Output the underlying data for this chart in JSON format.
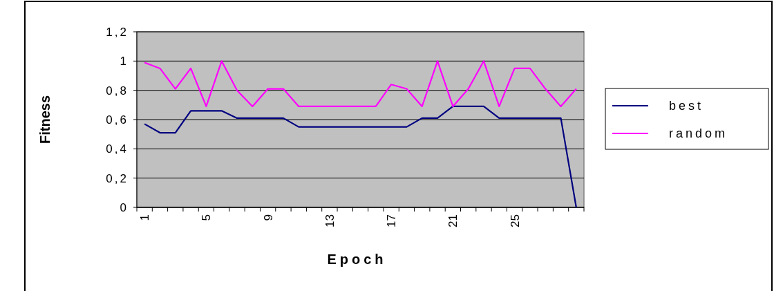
{
  "chart_data": {
    "type": "line",
    "xlabel": "Epoch",
    "ylabel": "Fitness",
    "categories": [
      "1",
      null,
      null,
      null,
      "5",
      null,
      null,
      null,
      "9",
      null,
      null,
      null,
      "13",
      null,
      null,
      null,
      "17",
      null,
      null,
      null,
      "21",
      null,
      null,
      null,
      "25",
      null,
      null,
      null,
      null
    ],
    "series": [
      {
        "name": "best",
        "color": "#000080",
        "values": [
          0.57,
          0.51,
          0.51,
          0.66,
          0.66,
          0.66,
          0.61,
          0.61,
          0.61,
          0.61,
          0.55,
          0.55,
          0.55,
          0.55,
          0.55,
          0.55,
          0.55,
          0.55,
          0.61,
          0.61,
          0.69,
          0.69,
          0.69,
          0.61,
          0.61,
          0.61,
          0.61,
          0.61,
          0
        ]
      },
      {
        "name": "random",
        "color": "#ff00ff",
        "values": [
          0.99,
          0.95,
          0.81,
          0.95,
          0.69,
          1,
          0.8,
          0.69,
          0.81,
          0.81,
          0.69,
          0.69,
          0.69,
          0.69,
          0.69,
          0.69,
          0.84,
          0.81,
          0.69,
          1,
          0.69,
          0.81,
          1,
          0.69,
          0.95,
          0.95,
          0.81,
          0.69,
          0.81
        ]
      }
    ],
    "ylim": [
      0,
      1.2
    ],
    "yticks": [
      0,
      {
        "value": 0.2,
        "label": "0,2"
      },
      {
        "value": 0.4,
        "label": "0,4"
      },
      {
        "value": 0.6,
        "label": "0,6"
      },
      {
        "value": 0.8,
        "label": "0,8"
      },
      1,
      {
        "value": 1.2,
        "label": "1,2"
      }
    ],
    "grid": "y",
    "legend": "right",
    "marker": "none",
    "line_style": "solid"
  }
}
